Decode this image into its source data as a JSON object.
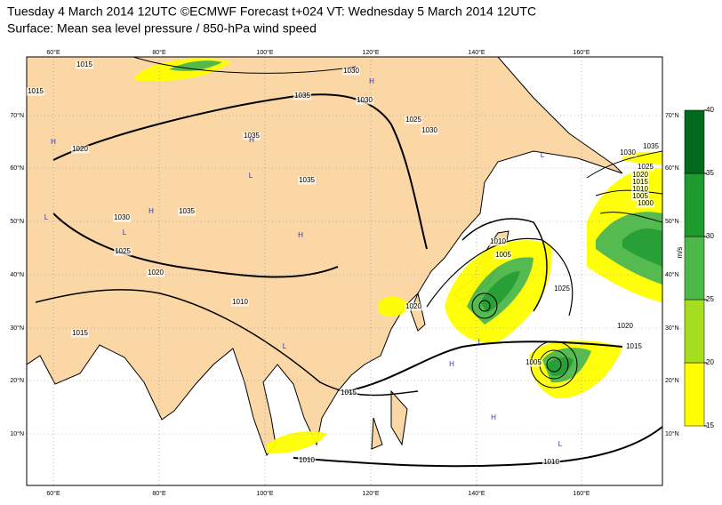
{
  "header": {
    "title": "Tuesday 4 March 2014 12UTC ©ECMWF Forecast t+024 VT: Wednesday 5 March 2014 12UTC",
    "subtitle": "Surface: Mean sea level pressure / 850-hPa wind speed"
  },
  "map": {
    "lon_labels": [
      "60°E",
      "80°E",
      "100°E",
      "120°E",
      "140°E",
      "160°E"
    ],
    "lat_labels": [
      "70°N",
      "60°N",
      "50°N",
      "40°N",
      "30°N",
      "20°N",
      "10°N"
    ],
    "isobar_labels": [
      "1015",
      "1030",
      "1035",
      "1035",
      "1035",
      "1030",
      "1025",
      "1020",
      "1015",
      "1020",
      "1030",
      "1025",
      "1030",
      "1035",
      "1010",
      "1015",
      "1010",
      "1010",
      "1015",
      "1020",
      "1025",
      "1010",
      "1005",
      "1005",
      "1025",
      "1020",
      "1015",
      "1010",
      "1005",
      "1000",
      "1030",
      "1035",
      "1020",
      "1015"
    ],
    "pressure_centres": [
      "H",
      "H",
      "H",
      "L",
      "L",
      "H",
      "L",
      "H",
      "L",
      "L",
      "H",
      "L",
      "H",
      "L"
    ]
  },
  "colorbar": {
    "unit": "m/s",
    "ticks": [
      15,
      20,
      25,
      30,
      35,
      40
    ],
    "colors": [
      "#ffff00",
      "#a6dd1e",
      "#4cb848",
      "#1e9a2e",
      "#006a1e"
    ]
  }
}
